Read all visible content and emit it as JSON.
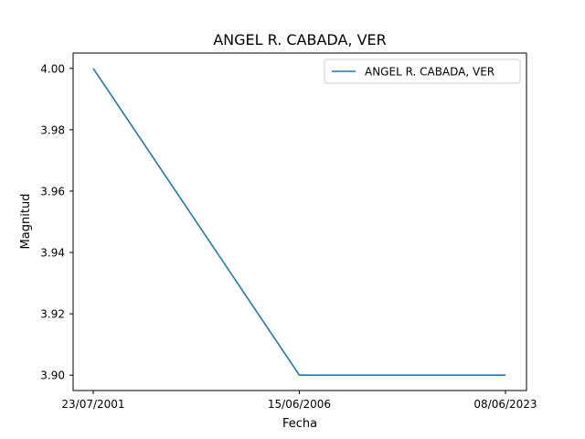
{
  "chart_data": {
    "type": "line",
    "title": "ANGEL R. CABADA, VER",
    "xlabel": "Fecha",
    "ylabel": "Magnitud",
    "x": [
      "23/07/2001",
      "15/06/2006",
      "08/06/2023"
    ],
    "series": [
      {
        "name": "ANGEL R. CABADA, VER",
        "values": [
          4.0,
          3.9,
          3.9
        ],
        "color": "#1f77b4"
      }
    ],
    "ylim": [
      3.895,
      4.005
    ],
    "yticks": [
      "3.90",
      "3.92",
      "3.94",
      "3.96",
      "3.98",
      "4.00"
    ],
    "grid": false,
    "legend_position": "top-right"
  }
}
